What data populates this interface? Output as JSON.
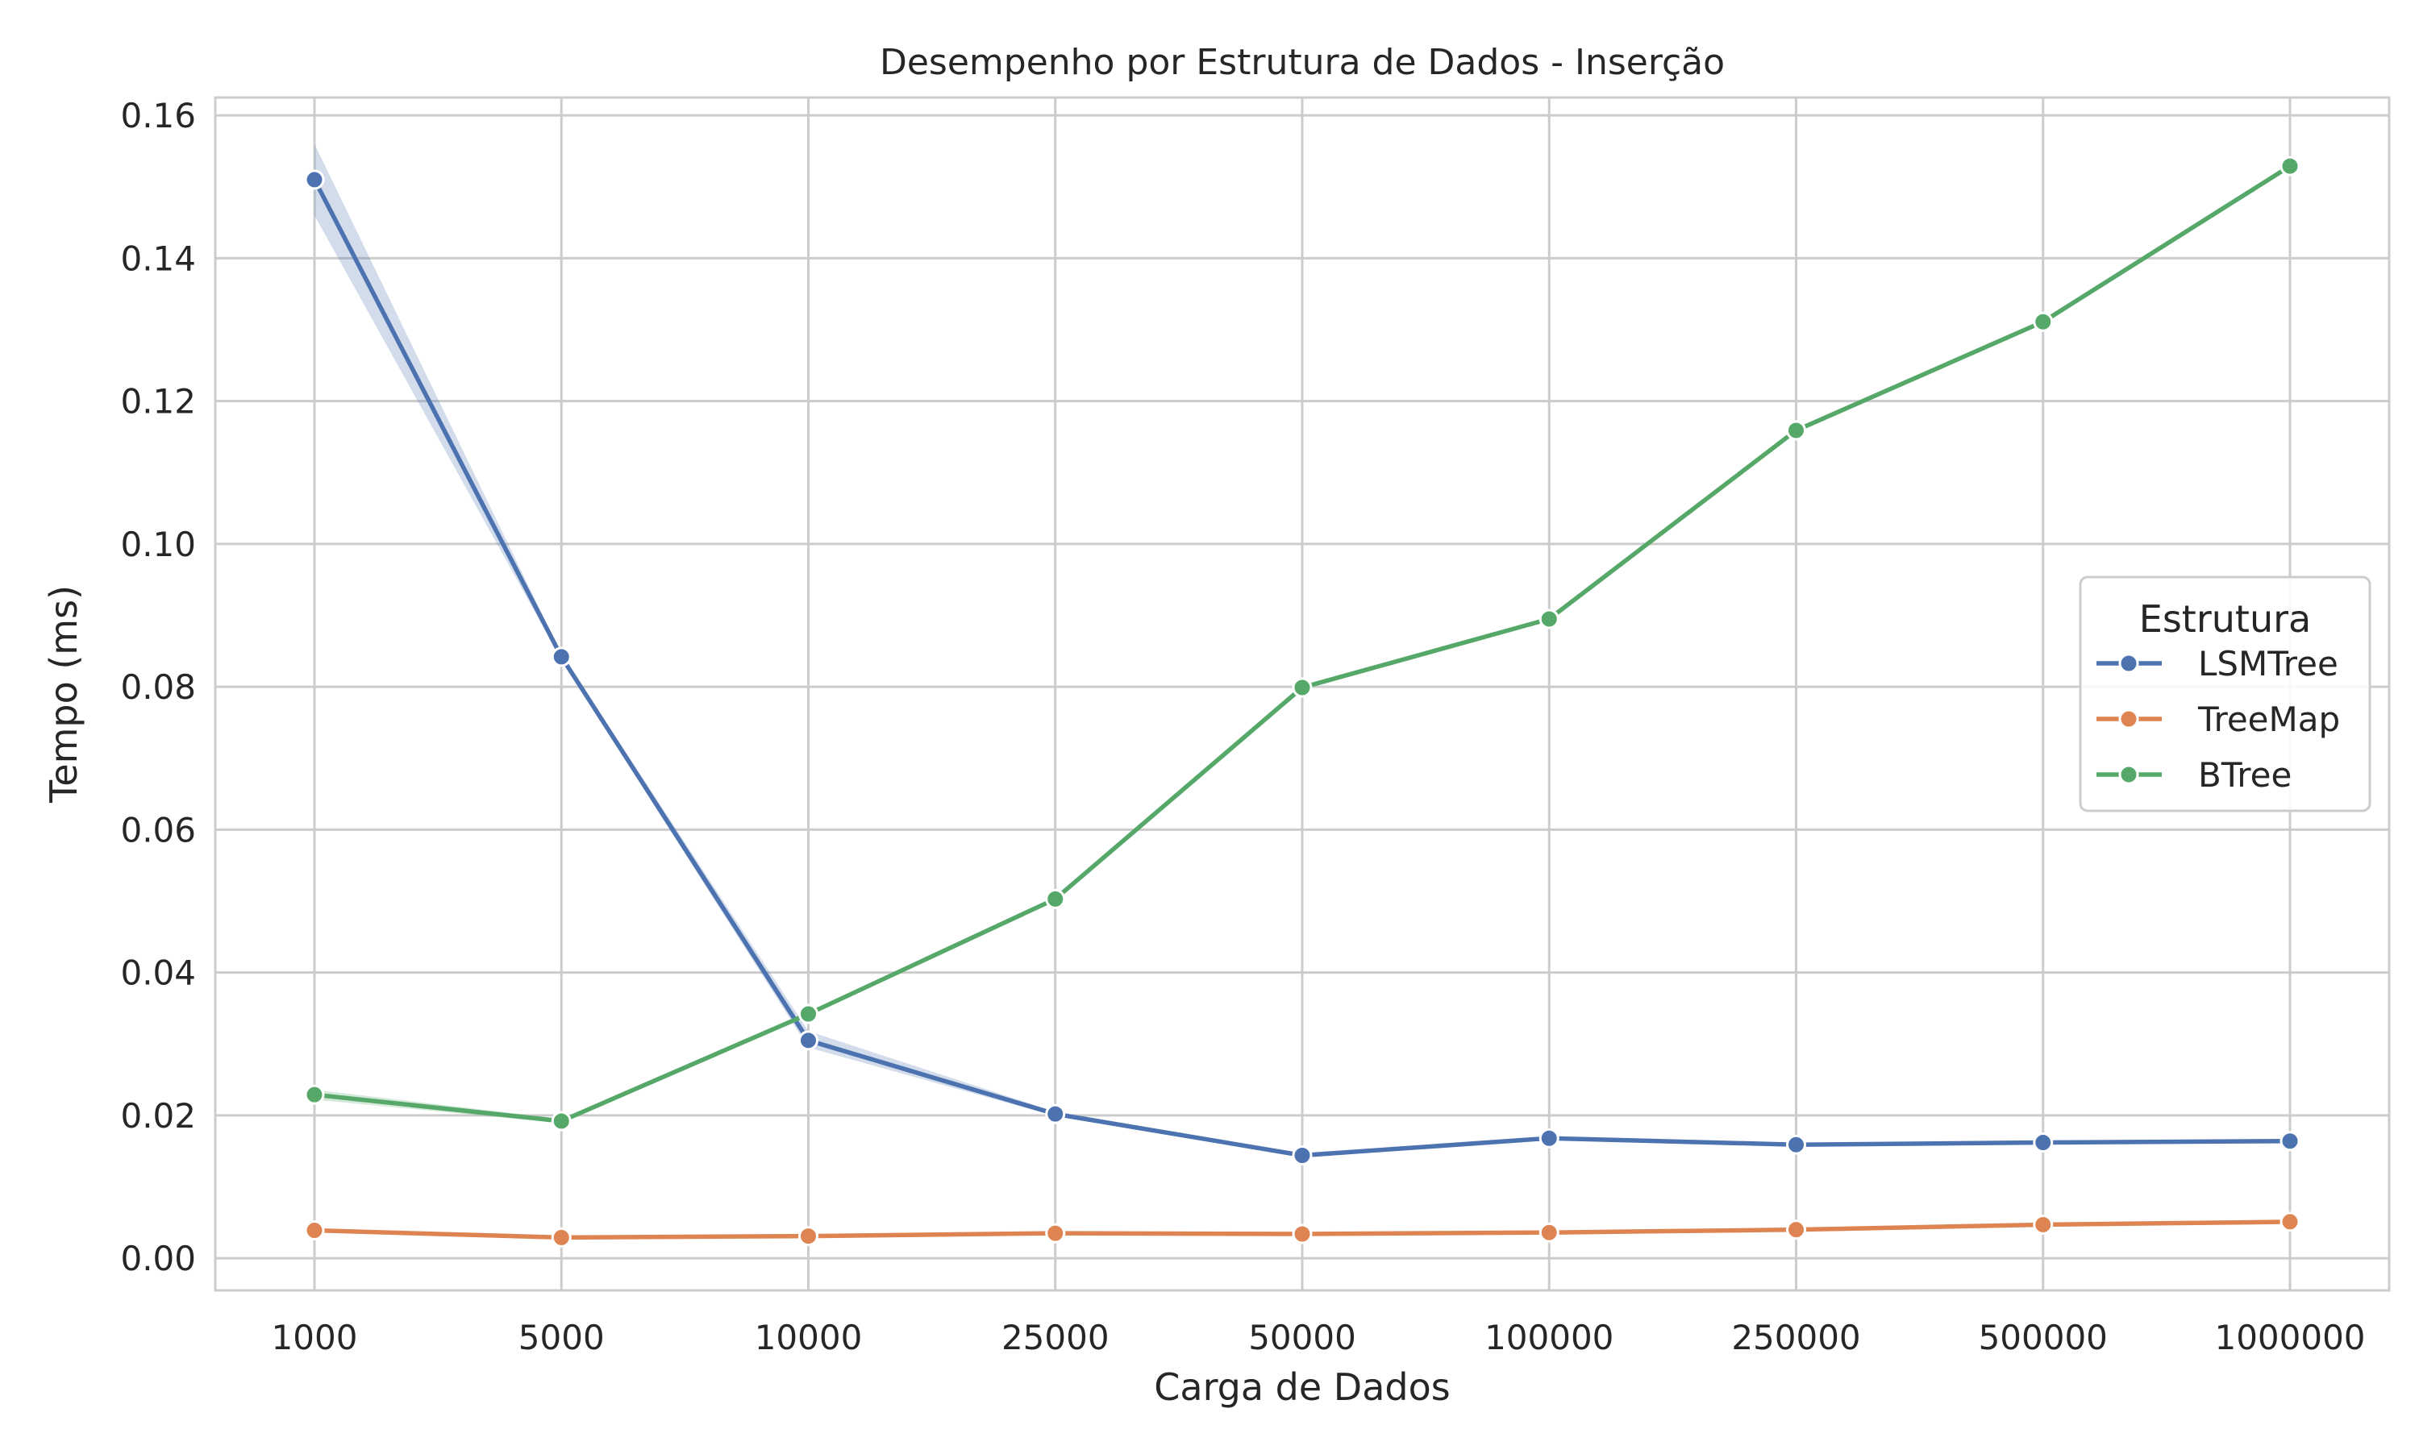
{
  "chart_data": {
    "type": "line",
    "title": "Desempenho por Estrutura de Dados - Inserção",
    "xlabel": "Carga de Dados",
    "ylabel": "Tempo (ms)",
    "categories": [
      "1000",
      "5000",
      "10000",
      "25000",
      "50000",
      "100000",
      "250000",
      "500000",
      "1000000"
    ],
    "y_ticks": [
      "0.00",
      "0.02",
      "0.04",
      "0.06",
      "0.08",
      "0.10",
      "0.12",
      "0.14",
      "0.16"
    ],
    "ylim": [
      -0.0045,
      0.1625
    ],
    "grid": true,
    "legend": {
      "title": "Estrutura",
      "placement": "center-right"
    },
    "series": [
      {
        "name": "LSMTree",
        "color": "#4c72b0",
        "values": [
          0.151,
          0.0842,
          0.0305,
          0.0202,
          0.0144,
          0.0168,
          0.0159,
          0.0162,
          0.0164
        ],
        "ci_lower": [
          0.146,
          0.0838,
          0.0295,
          0.0199,
          0.0142,
          0.0166,
          0.0157,
          0.016,
          0.0162
        ],
        "ci_upper": [
          0.156,
          0.0846,
          0.0318,
          0.0205,
          0.0146,
          0.017,
          0.0161,
          0.0164,
          0.0166
        ]
      },
      {
        "name": "TreeMap",
        "color": "#dd8452",
        "values": [
          0.0039,
          0.0029,
          0.0031,
          0.0035,
          0.0034,
          0.0036,
          0.004,
          0.0047,
          0.0051
        ],
        "ci_lower": [
          0.0037,
          0.0028,
          0.003,
          0.0034,
          0.0033,
          0.0035,
          0.0039,
          0.0046,
          0.005
        ],
        "ci_upper": [
          0.0041,
          0.003,
          0.0032,
          0.0036,
          0.0035,
          0.0037,
          0.0041,
          0.0048,
          0.0052
        ]
      },
      {
        "name": "BTree",
        "color": "#55a868",
        "values": [
          0.0229,
          0.0192,
          0.0342,
          0.0503,
          0.0799,
          0.0895,
          0.1159,
          0.1311,
          0.1529
        ],
        "ci_lower": [
          0.0222,
          0.0189,
          0.0339,
          0.05,
          0.0796,
          0.0893,
          0.1157,
          0.1309,
          0.1527
        ],
        "ci_upper": [
          0.0236,
          0.0195,
          0.0345,
          0.0506,
          0.0802,
          0.0897,
          0.1161,
          0.1313,
          0.1531
        ]
      }
    ]
  }
}
